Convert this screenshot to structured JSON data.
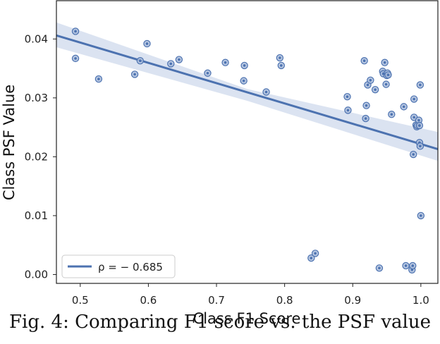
{
  "caption": "Fig. 4: Comparing F1 score vs. the PSF value",
  "chart_data": {
    "type": "scatter",
    "title": "",
    "xlabel": "Class F1 Score",
    "ylabel": "Class PSF Value",
    "xlim": [
      0.465,
      1.025
    ],
    "ylim": [
      -0.0015,
      0.0465
    ],
    "xticks": [
      0.5,
      0.6,
      0.7,
      0.8,
      0.9,
      1.0
    ],
    "xtick_labels": [
      "0.5",
      "0.6",
      "0.7",
      "0.8",
      "0.9",
      "1.0"
    ],
    "yticks": [
      0.0,
      0.01,
      0.02,
      0.03,
      0.04
    ],
    "ytick_labels": [
      "0.00",
      "0.01",
      "0.02",
      "0.03",
      "0.04"
    ],
    "grid": false,
    "legend_position": "lower-left",
    "colors": {
      "points": "#4c72b0",
      "line": "#4c72b0",
      "band": "#dbe3f1"
    },
    "series": [
      {
        "kind": "scatter",
        "x": [
          0.493,
          0.493,
          0.527,
          0.58,
          0.588,
          0.598,
          0.633,
          0.645,
          0.687,
          0.713,
          0.74,
          0.741,
          0.773,
          0.793,
          0.795,
          0.839,
          0.845,
          0.892,
          0.893,
          0.917,
          0.919,
          0.92,
          0.922,
          0.926,
          0.933,
          0.939,
          0.944,
          0.945,
          0.947,
          0.949,
          0.95,
          0.951,
          0.952,
          0.957,
          0.975,
          0.978,
          0.987,
          0.988,
          0.989,
          0.99,
          0.99,
          0.993,
          0.994,
          0.995,
          0.997,
          0.998,
          0.998,
          0.999,
          0.999,
          1.0
        ],
        "y": [
          0.0413,
          0.0367,
          0.0332,
          0.034,
          0.0363,
          0.0392,
          0.0358,
          0.0365,
          0.0342,
          0.036,
          0.0329,
          0.0355,
          0.031,
          0.0368,
          0.0355,
          0.0028,
          0.0036,
          0.0302,
          0.0279,
          0.0363,
          0.0265,
          0.0287,
          0.0322,
          0.033,
          0.0314,
          0.0011,
          0.0345,
          0.0341,
          0.036,
          0.0323,
          0.0338,
          0.0342,
          0.0339,
          0.0272,
          0.0285,
          0.0015,
          0.0008,
          0.0015,
          0.0204,
          0.0298,
          0.0267,
          0.0254,
          0.0251,
          0.0253,
          0.0262,
          0.0224,
          0.0253,
          0.0218,
          0.0322,
          0.01
        ]
      }
    ],
    "regression": {
      "label": "ρ = − 0.685",
      "x_start": 0.465,
      "x_end": 1.025,
      "y_start": 0.0406,
      "y_end": 0.0213,
      "ci_lower_start": 0.0386,
      "ci_upper_start": 0.0428,
      "ci_lower_mid": 0.0295,
      "ci_upper_mid": 0.0315,
      "ci_lower_end": 0.0193,
      "ci_upper_end": 0.0242
    }
  }
}
